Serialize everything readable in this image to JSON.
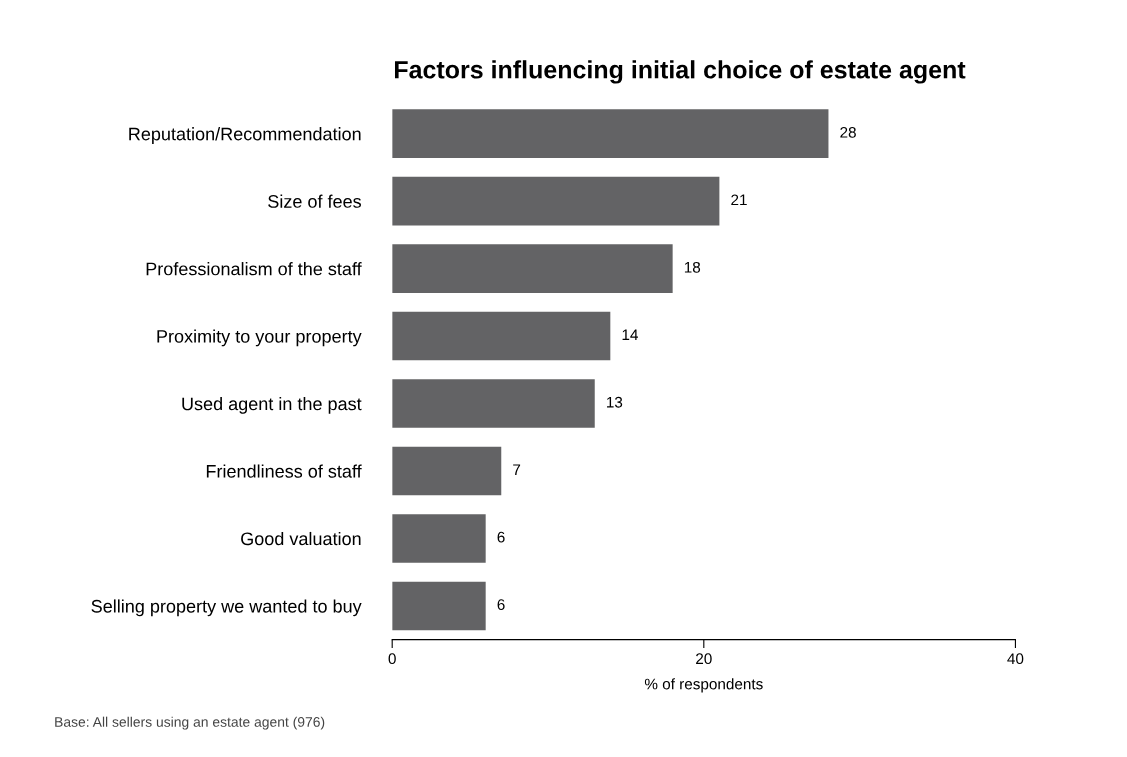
{
  "chart_data": {
    "type": "bar",
    "orientation": "horizontal",
    "title": "Factors influencing initial choice of estate agent",
    "categories": [
      "Reputation/Recommendation",
      "Size of fees",
      "Professionalism of the staff",
      "Proximity to your property",
      "Used agent in the past",
      "Friendliness of staff",
      "Good valuation",
      "Selling property we wanted to buy"
    ],
    "values": [
      28,
      21,
      18,
      14,
      13,
      7,
      6,
      6
    ],
    "color": "#636365",
    "xlim": [
      0,
      40
    ],
    "xticks": [
      0,
      20,
      40
    ],
    "xlabel": "% of respondents",
    "data_labels": true,
    "grid": false,
    "legend": false,
    "annotations": [
      "Base: All sellers using an estate agent (976)"
    ]
  }
}
